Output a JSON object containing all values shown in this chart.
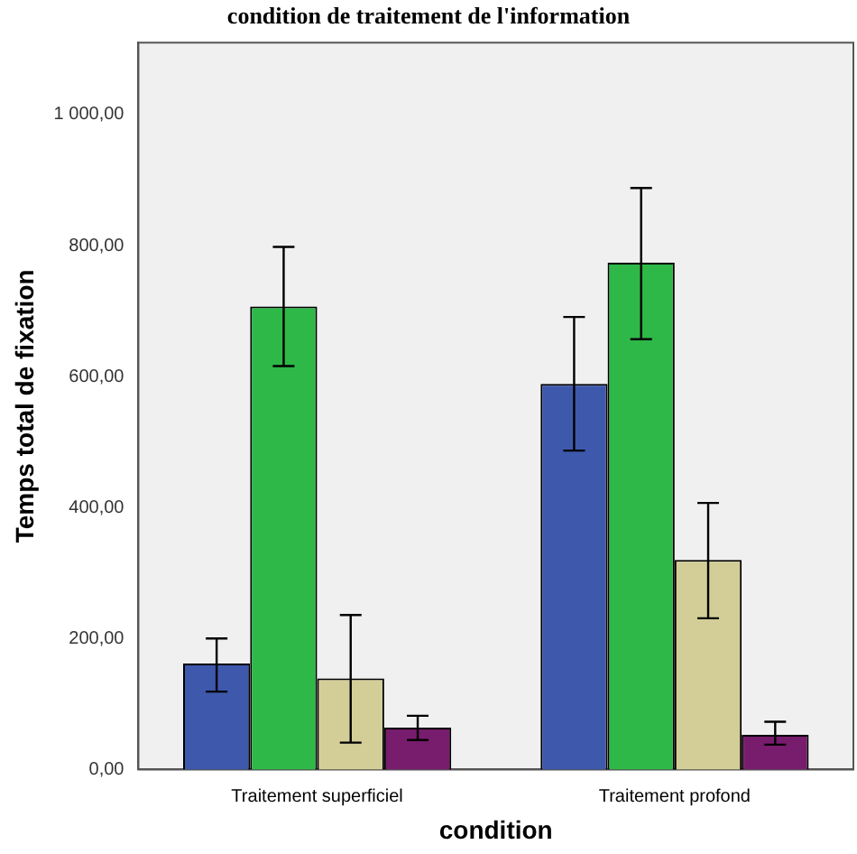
{
  "chart_data": {
    "type": "bar",
    "title": "condition de traitement de l'information",
    "xlabel": "condition",
    "ylabel": "Temps total de fixation",
    "categories": [
      "Traitement superficiel",
      "Traitement profond"
    ],
    "series": [
      {
        "color": "#3e58ac",
        "values": [
          162,
          589
        ],
        "errors": [
          [
            119,
            200
          ],
          [
            487,
            691
          ]
        ]
      },
      {
        "color": "#2eb848",
        "values": [
          707,
          774
        ],
        "errors": [
          [
            616,
            798
          ],
          [
            657,
            888
          ]
        ]
      },
      {
        "color": "#d3ce97",
        "values": [
          139,
          320
        ],
        "errors": [
          [
            41,
            236
          ],
          [
            231,
            407
          ]
        ]
      },
      {
        "color": "#781c6e",
        "values": [
          64,
          53
        ],
        "errors": [
          [
            45,
            82
          ],
          [
            38,
            73
          ]
        ]
      }
    ],
    "ylim": [
      0,
      1110
    ],
    "yticks": [
      {
        "value": 0,
        "label": "0,00"
      },
      {
        "value": 200,
        "label": "200,00"
      },
      {
        "value": 400,
        "label": "400,00"
      },
      {
        "value": 600,
        "label": "600,00"
      },
      {
        "value": 800,
        "label": "800,00"
      },
      {
        "value": 1000,
        "label": "1 000,00"
      }
    ],
    "grid": false,
    "legend": false
  }
}
